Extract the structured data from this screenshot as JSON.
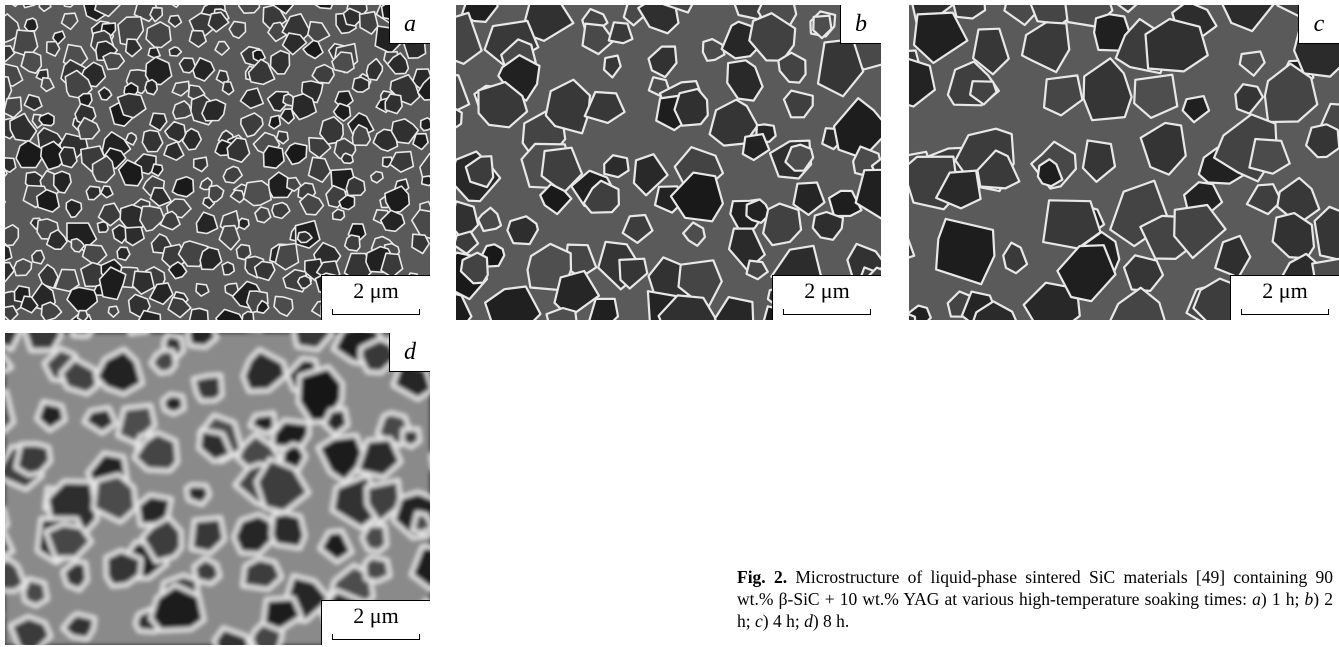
{
  "panels": [
    {
      "letter": "a",
      "scale": "2 μm"
    },
    {
      "letter": "b",
      "scale": "2 μm"
    },
    {
      "letter": "c",
      "scale": "2 μm"
    },
    {
      "letter": "d",
      "scale": "2 μm"
    }
  ],
  "caption": {
    "label": "Fig. 2.",
    "text": "Microstructure of liquid-phase sintered SiC materials [49] containing 90 wt.% β-SiC + 10 wt.% YAG at various high-temperature soaking times:",
    "items": [
      {
        "letter": "a",
        "text": ") 1 h;"
      },
      {
        "letter": "b",
        "text": ") 2 h;"
      },
      {
        "letter": "c",
        "text": ") 4 h;"
      },
      {
        "letter": "d",
        "text": ") 8 h."
      }
    ]
  }
}
